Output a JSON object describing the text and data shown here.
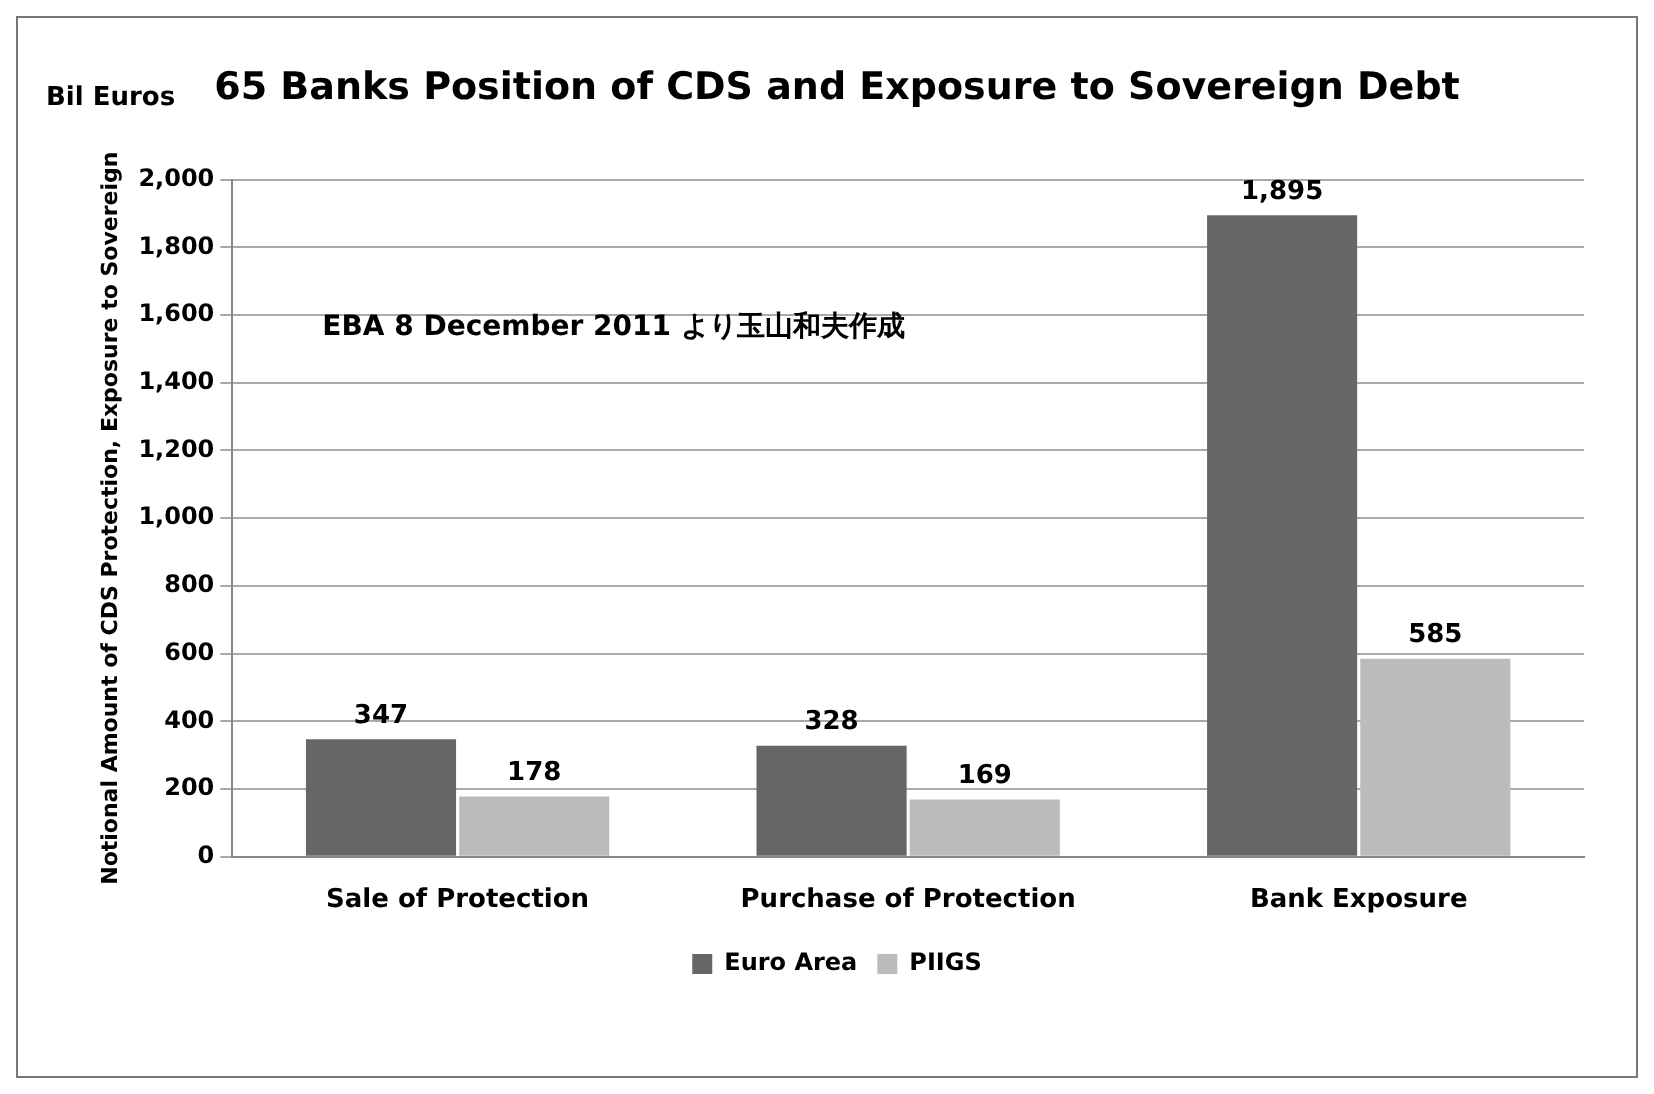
{
  "chart_data": {
    "type": "bar",
    "title": "65 Banks Position of CDS and Exposure to Sovereign Debt",
    "ylabel": "Notional Amount of CDS Protection, Exposure to Sovereign",
    "annotations": [
      "Bil Euros",
      "EBA 8 December 2011 より玉山和夫作成"
    ],
    "categories": [
      "Sale of Protection",
      "Purchase of Protection",
      "Bank Exposure"
    ],
    "series": [
      {
        "name": "Euro Area",
        "color": "#666666",
        "values": [
          347,
          328,
          1895
        ],
        "value_labels": [
          "347",
          "328",
          "1,895"
        ]
      },
      {
        "name": "PIIGS",
        "color": "#bbbbbb",
        "values": [
          178,
          169,
          585
        ],
        "value_labels": [
          "178",
          "169",
          "585"
        ]
      }
    ],
    "ylim": [
      0,
      2000
    ],
    "yticks": [
      0,
      {
        "value": 200,
        "label": "200"
      },
      {
        "value": 400,
        "label": "400"
      },
      {
        "value": 600,
        "label": "600"
      },
      {
        "value": 800,
        "label": "800"
      },
      {
        "value": 1000,
        "label": "1,000"
      },
      {
        "value": 1200,
        "label": "1,200"
      },
      {
        "value": 1400,
        "label": "1,400"
      },
      {
        "value": 1600,
        "label": "1,600"
      },
      {
        "value": 1800,
        "label": "1,800"
      },
      {
        "value": 2000,
        "label": "2,000"
      }
    ],
    "grid": "y",
    "legend": "bottom"
  }
}
